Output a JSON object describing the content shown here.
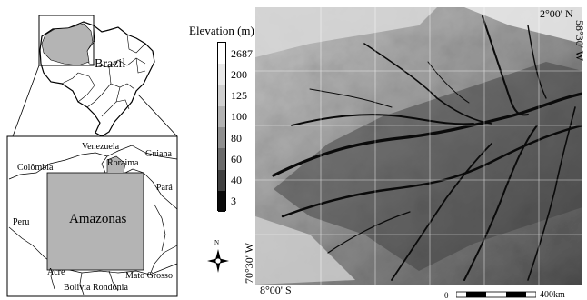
{
  "inset_brazil": {
    "country_label": "Brazil"
  },
  "inset_amazonas": {
    "state_label": "Amazonas",
    "neighbors": [
      "Venezuela",
      "Guiana",
      "Colômbia",
      "Roraima",
      "Pará",
      "Peru",
      "Acre",
      "Mato Grosso",
      "Bolivia",
      "Rondônia"
    ]
  },
  "legend": {
    "title": "Elevation (m)",
    "classes": [
      {
        "label": "2687",
        "color": "#ffffff"
      },
      {
        "label": "200",
        "color": "#e8e8e8"
      },
      {
        "label": "125",
        "color": "#cfcfcf"
      },
      {
        "label": "100",
        "color": "#b2b2b2"
      },
      {
        "label": "80",
        "color": "#8f8f8f"
      },
      {
        "label": "60",
        "color": "#6a6a6a"
      },
      {
        "label": "40",
        "color": "#404040"
      },
      {
        "label": "3",
        "color": "#0a0a0a"
      }
    ]
  },
  "coordinates": {
    "top_right_lat": "2°00' N",
    "right_lon": "58°30' W",
    "bottom_left_lat": "8°00' S",
    "left_lon": "70°30' W"
  },
  "north_arrow": {
    "letter": "N"
  },
  "scale_bar": {
    "start": "0",
    "end": "400km"
  }
}
